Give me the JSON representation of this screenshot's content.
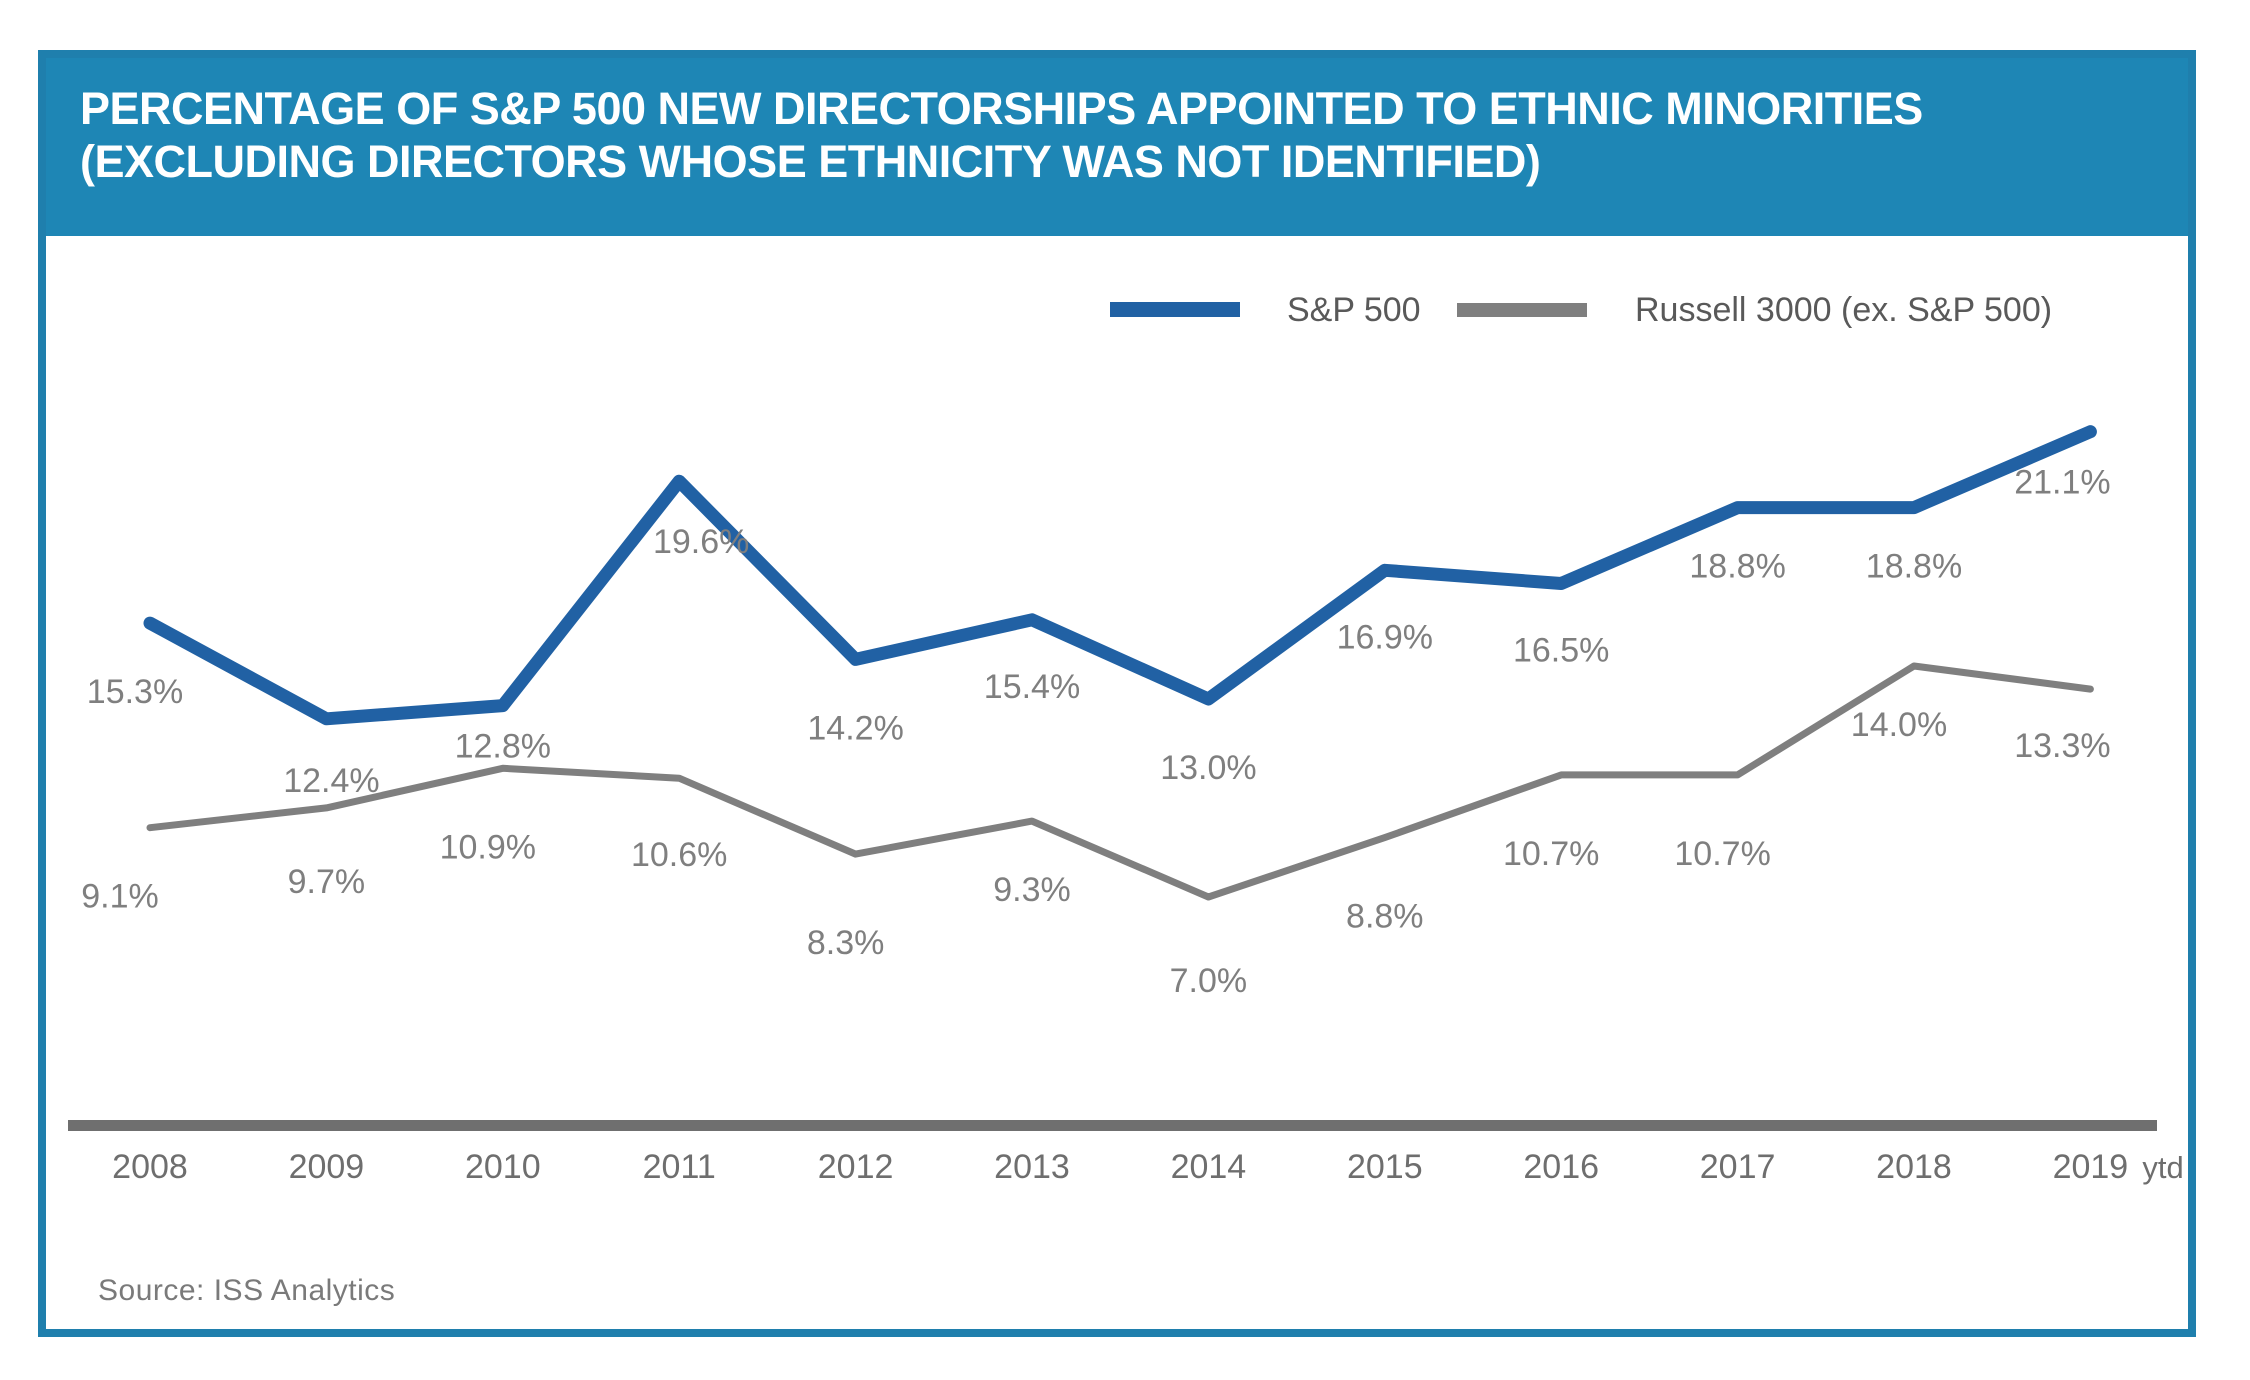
{
  "header": {
    "title_line1": "PERCENTAGE OF S&P 500 NEW DIRECTORSHIPS APPOINTED TO ETHNIC MINORITIES",
    "title_line2": "(EXCLUDING DIRECTORS WHOSE ETHNICITY WAS NOT IDENTIFIED)"
  },
  "legend": {
    "items": [
      {
        "label": "S&P 500",
        "color": "#2161a4"
      },
      {
        "label": "Russell 3000 (ex. S&P 500)",
        "color": "#7f7f7f"
      }
    ]
  },
  "footer": {
    "source": "Source: ISS Analytics"
  },
  "colors": {
    "header_background": "#1e86b5",
    "frame_border": "#1f7fad",
    "axis_line": "#6f6f6f",
    "data_label_text": "#7f7f7f",
    "tick_label_text": "#6e6e6e",
    "legend_text": "#595959"
  },
  "chart_data": {
    "type": "line",
    "title": "Percentage of S&P 500 new directorships appointed to ethnic minorities (excluding directors whose ethnicity was not identified)",
    "categories": [
      "2008",
      "2009",
      "2010",
      "2011",
      "2012",
      "2013",
      "2014",
      "2015",
      "2016",
      "2017",
      "2018",
      "2019 ytd"
    ],
    "series": [
      {
        "name": "S&P 500",
        "color": "#2161a4",
        "values": [
          15.3,
          12.4,
          12.8,
          19.6,
          14.2,
          15.4,
          13.0,
          16.9,
          16.5,
          18.8,
          18.8,
          21.1
        ]
      },
      {
        "name": "Russell 3000 (ex. S&P 500)",
        "color": "#7f7f7f",
        "values": [
          9.1,
          9.7,
          10.9,
          10.6,
          8.3,
          9.3,
          7.0,
          8.8,
          10.7,
          10.7,
          14.0,
          13.3
        ]
      }
    ],
    "label_format": "{value}%",
    "ylim": [
      0,
      24
    ],
    "grid": false,
    "legend_position": "top-right-inside",
    "x_axis_style": "thick-gray-baseline",
    "source": "Source: ISS Analytics"
  }
}
